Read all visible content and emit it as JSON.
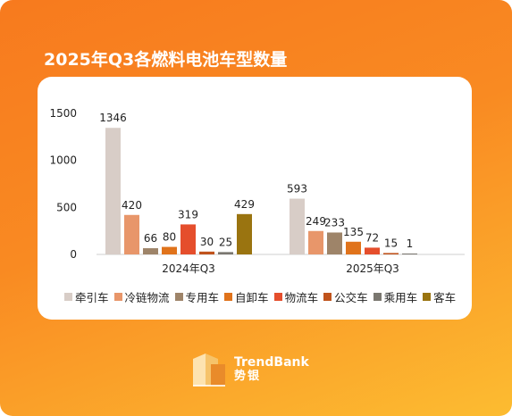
{
  "title": "2025年Q3各燃料电池车型数量",
  "brand": {
    "name_en": "TrendBank",
    "name_cn": "势银"
  },
  "chart_data": {
    "type": "bar",
    "title": "2025年Q3各燃料电池车型数量",
    "categories": [
      "2024年Q3",
      "2025年Q3"
    ],
    "ylim": [
      0,
      1500
    ],
    "yticks": [
      0,
      500,
      1000,
      1500
    ],
    "grid": false,
    "legend_placement": "bottom",
    "series": [
      {
        "name": "牵引车",
        "color": "#d8cdc7",
        "values": [
          1346,
          593
        ]
      },
      {
        "name": "冷链物流",
        "color": "#e8966a",
        "values": [
          420,
          249
        ]
      },
      {
        "name": "专用车",
        "color": "#9e8469",
        "values": [
          66,
          233
        ]
      },
      {
        "name": "自卸车",
        "color": "#e0731b",
        "values": [
          80,
          135
        ]
      },
      {
        "name": "物流车",
        "color": "#e54e2c",
        "values": [
          319,
          72
        ]
      },
      {
        "name": "公交车",
        "color": "#c0531c",
        "values": [
          30,
          15
        ]
      },
      {
        "name": "乘用车",
        "color": "#7a7770",
        "values": [
          25,
          1
        ]
      },
      {
        "name": "客车",
        "color": "#9a7410",
        "values": [
          429,
          null
        ]
      }
    ]
  }
}
